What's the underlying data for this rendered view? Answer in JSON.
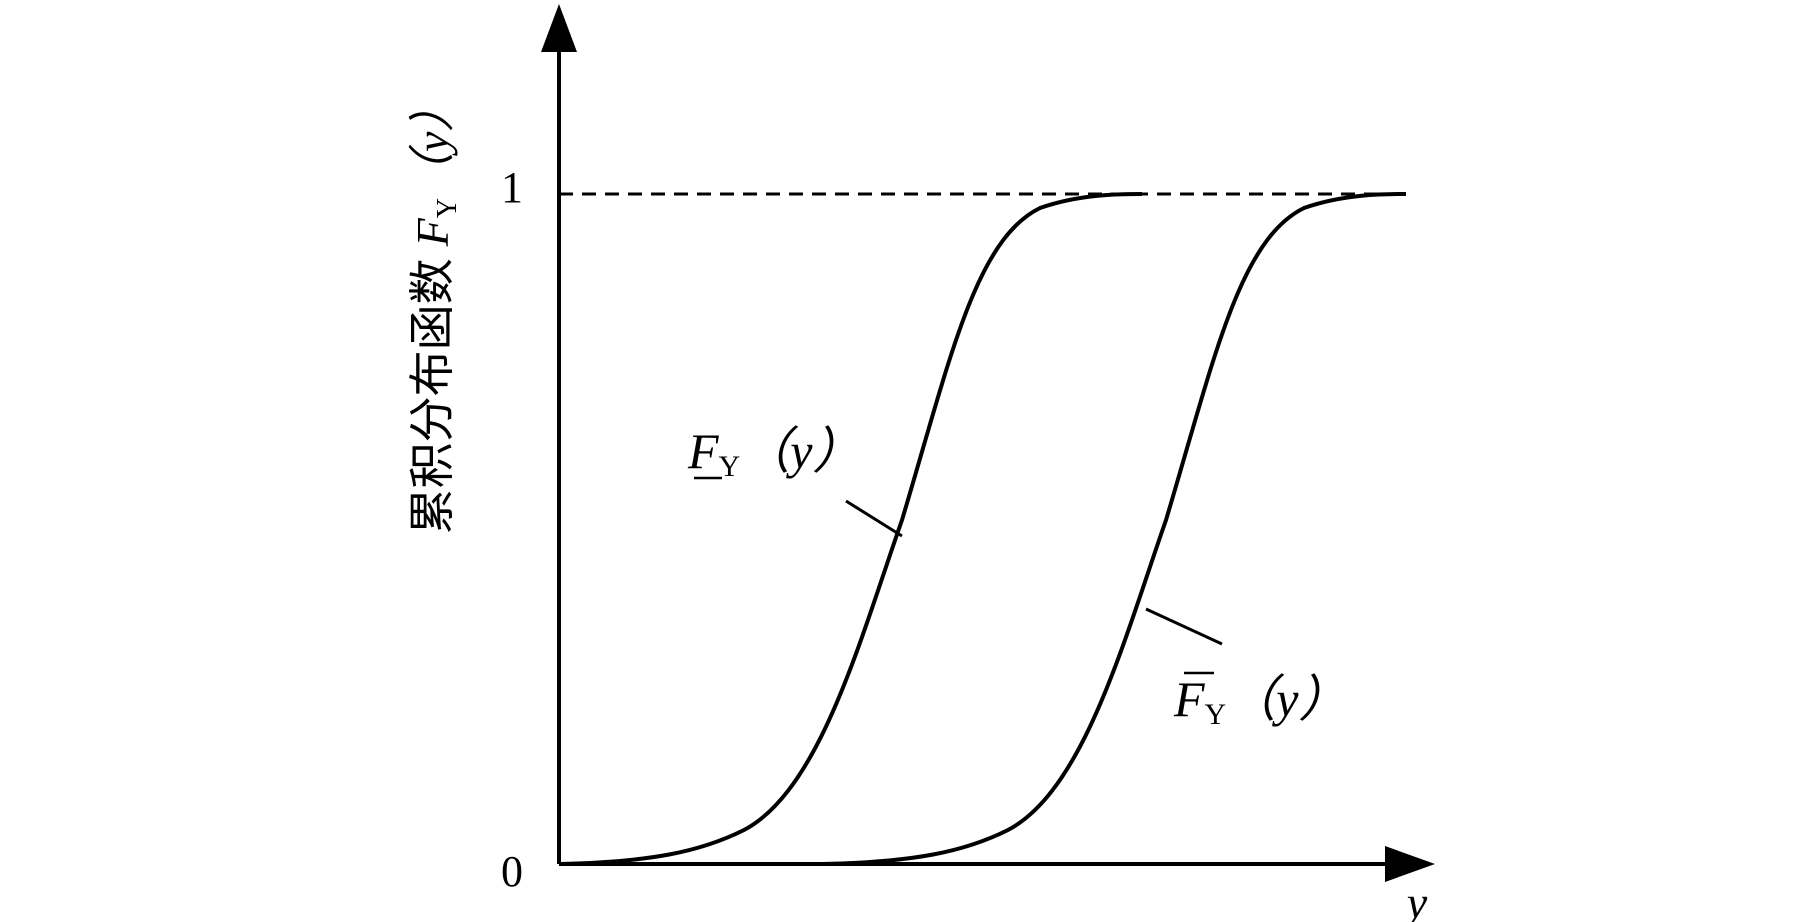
{
  "y_axis": {
    "label": {
      "text": "累积分布函数",
      "symbol": "F",
      "subscript": "Y",
      "argument": "（y）"
    },
    "ticks": [
      "0",
      "1"
    ]
  },
  "x_axis": {
    "label": "y"
  },
  "curves": [
    {
      "symbol": "F",
      "subscript": "Y",
      "argument": "（y）"
    },
    {
      "symbol": "F",
      "subscript": "Y",
      "argument": "（y）"
    }
  ]
}
